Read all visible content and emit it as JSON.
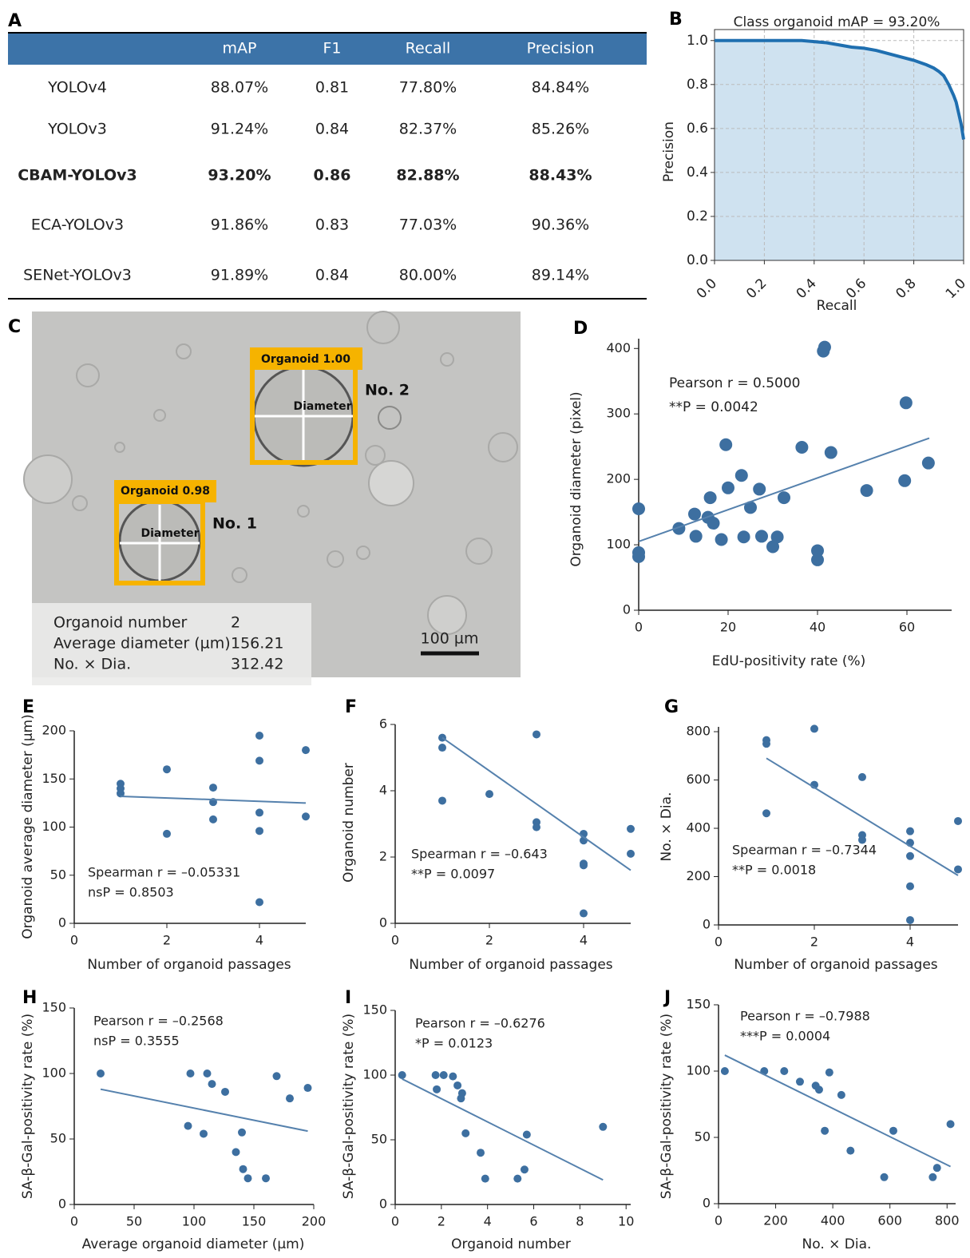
{
  "table": {
    "label": "A",
    "columns": [
      "mAP",
      "F1",
      "Recall",
      "Precision"
    ],
    "rows": [
      {
        "name": "YOLOv4",
        "cells": [
          "88.07%",
          "0.81",
          "77.80%",
          "84.84%"
        ]
      },
      {
        "name": "YOLOv3",
        "cells": [
          "91.24%",
          "0.84",
          "82.37%",
          "85.26%"
        ]
      },
      {
        "name": "CBAM-YOLOv3",
        "cells": [
          "93.20%",
          "0.86",
          "82.88%",
          "88.43%"
        ]
      },
      {
        "name": "ECA-YOLOv3",
        "cells": [
          "91.86%",
          "0.83",
          "77.03%",
          "90.36%"
        ]
      },
      {
        "name": "SENet-YOLOv3",
        "cells": [
          "91.89%",
          "0.84",
          "80.00%",
          "89.14%"
        ]
      }
    ]
  },
  "image_panel": {
    "label": "C",
    "detections": [
      {
        "tag": "Organoid 1.00",
        "measure": "Diameter",
        "name": "No. 2"
      },
      {
        "tag": "Organoid 0.98",
        "measure": "Diameter",
        "name": "No. 1"
      }
    ],
    "summary": [
      {
        "label": "Organoid number",
        "value": 2
      },
      {
        "label": "Average diameter (µm)",
        "value": 156.21
      },
      {
        "label": "No. × Dia.",
        "value": 312.42
      }
    ],
    "scale_bar": "100 µm"
  },
  "chart_data": [
    {
      "label": "B",
      "type": "area",
      "title": "Class organoid mAP = 93.20%",
      "x_label": "Recall",
      "y_label": "Precision",
      "color": "#1f6fb0",
      "fill": "#cfe2f0",
      "grid": true,
      "x": [
        0,
        0.1,
        0.2,
        0.3,
        0.35,
        0.4,
        0.45,
        0.5,
        0.55,
        0.6,
        0.65,
        0.7,
        0.75,
        0.8,
        0.85,
        0.88,
        0.9,
        0.92,
        0.94,
        0.96,
        0.97,
        0.98,
        0.99,
        1.0
      ],
      "values": [
        1.0,
        1.0,
        1.0,
        1.0,
        1.0,
        0.995,
        0.99,
        0.98,
        0.97,
        0.965,
        0.955,
        0.94,
        0.925,
        0.91,
        0.89,
        0.875,
        0.86,
        0.84,
        0.8,
        0.75,
        0.72,
        0.67,
        0.62,
        0.55
      ],
      "xlim": [
        0,
        1
      ],
      "ylim": [
        0,
        1.05
      ],
      "xticks": [
        {
          "value": 0,
          "label": "0.0"
        },
        {
          "value": 0.2,
          "label": "0.2"
        },
        {
          "value": 0.4,
          "label": "0.4"
        },
        {
          "value": 0.6,
          "label": "0.6"
        },
        {
          "value": 0.8,
          "label": "0.8"
        },
        {
          "value": 1,
          "label": "1.0"
        }
      ],
      "yticks": [
        {
          "value": 0,
          "label": "0.0"
        },
        {
          "value": 0.2,
          "label": "0.2"
        },
        {
          "value": 0.4,
          "label": "0.4"
        },
        {
          "value": 0.6,
          "label": "0.6"
        },
        {
          "value": 0.8,
          "label": "0.8"
        },
        {
          "value": 1,
          "label": "1.0"
        }
      ]
    },
    {
      "label": "D",
      "type": "scatter",
      "x_label": "EdU-positivity rate (%)",
      "y_label": "Organoid diameter (pixel)",
      "annotations": [
        "Pearson r = 0.5000",
        "**P = 0.0042"
      ],
      "color": "#3d6fa0",
      "x": [
        0,
        0,
        0,
        9,
        12.5,
        12.8,
        15.5,
        16,
        16.7,
        18.5,
        19.5,
        20,
        23,
        23.5,
        25,
        27,
        27.5,
        30,
        31,
        32.5,
        36.5,
        40,
        40,
        41.3,
        41.6,
        43,
        51,
        59.5,
        59.8,
        64.8
      ],
      "values": [
        155,
        88,
        82,
        125,
        147,
        113,
        142,
        172,
        133,
        108,
        253,
        187,
        206,
        112,
        157,
        185,
        113,
        97,
        112,
        172,
        249,
        91,
        77,
        396,
        402,
        241,
        183,
        198,
        317,
        225
      ],
      "fit": {
        "x": [
          0,
          65
        ],
        "values": [
          105,
          263
        ],
        "color": "#5581ad"
      },
      "xlim": [
        0,
        70
      ],
      "ylim": [
        0,
        415
      ],
      "xticks": [
        0,
        20,
        40,
        60
      ],
      "yticks": [
        0,
        100,
        200,
        300,
        400
      ]
    },
    {
      "label": "E",
      "type": "scatter",
      "x_label": "Number of organoid passages",
      "y_label": "Organoid average diameter (µm)",
      "annotations": [
        "Spearman r = –0.05331",
        "nsP = 0.8503"
      ],
      "color": "#3d6fa0",
      "x": [
        1,
        1,
        1,
        2,
        2,
        3,
        3,
        3,
        4,
        4,
        4,
        4,
        4,
        5,
        5
      ],
      "values": [
        145,
        140,
        135,
        160,
        93,
        141,
        126,
        108,
        195,
        169,
        115,
        96,
        22,
        180,
        111
      ],
      "fit": {
        "x": [
          1,
          5
        ],
        "values": [
          132,
          125
        ],
        "color": "#5581ad"
      },
      "xlim": [
        0,
        5
      ],
      "ylim": [
        0,
        200
      ],
      "xticks": [
        0,
        2,
        4
      ],
      "yticks": [
        0,
        50,
        100,
        150,
        200
      ]
    },
    {
      "label": "F",
      "type": "scatter",
      "x_label": "Number of organoid passages",
      "y_label": "Organoid number",
      "annotations": [
        "Spearman r = –0.643",
        "**P = 0.0097"
      ],
      "color": "#3d6fa0",
      "x": [
        1,
        1,
        1,
        2,
        3,
        3,
        3,
        4,
        4,
        4,
        4,
        4,
        5,
        5
      ],
      "values": [
        5.6,
        5.3,
        3.7,
        3.9,
        5.7,
        3.05,
        2.9,
        2.7,
        2.5,
        1.8,
        1.75,
        0.3,
        2.85,
        2.1
      ],
      "fit": {
        "x": [
          1,
          5
        ],
        "values": [
          5.6,
          1.6
        ],
        "color": "#5581ad"
      },
      "xlim": [
        0,
        5
      ],
      "ylim": [
        0,
        6
      ],
      "xticks": [
        0,
        2,
        4
      ],
      "yticks": [
        0,
        2,
        4,
        6
      ]
    },
    {
      "label": "G",
      "type": "scatter",
      "x_label": "Number of organoid passages",
      "y_label": "No. × Dia.",
      "annotations": [
        "Spearman r = –0.7344",
        "**P = 0.0018"
      ],
      "color": "#3d6fa0",
      "x": [
        1,
        1,
        1,
        2,
        2,
        3,
        3,
        3,
        4,
        4,
        4,
        4,
        4,
        5,
        5
      ],
      "values": [
        765,
        750,
        462,
        812,
        580,
        612,
        372,
        352,
        388,
        340,
        285,
        160,
        20,
        430,
        230
      ],
      "fit": {
        "x": [
          1,
          5
        ],
        "values": [
          690,
          205
        ],
        "color": "#5581ad"
      },
      "xlim": [
        0,
        5
      ],
      "ylim": [
        0,
        820
      ],
      "xticks": [
        0,
        2,
        4
      ],
      "yticks": [
        0,
        200,
        400,
        600,
        800
      ]
    },
    {
      "label": "H",
      "type": "scatter",
      "x_label": "Average organoid diameter (µm)",
      "y_label": "SA-β-Gal-positivity rate (%)",
      "annotations": [
        "Pearson r = –0.2568",
        "nsP = 0.3555"
      ],
      "color": "#3d6fa0",
      "x": [
        22,
        95,
        97,
        108,
        111,
        115,
        126,
        135,
        140,
        141,
        145,
        160,
        169,
        180,
        195
      ],
      "values": [
        100,
        60,
        100,
        54,
        100,
        92,
        86,
        40,
        55,
        27,
        20,
        20,
        98,
        81,
        89
      ],
      "fit": {
        "x": [
          22,
          195
        ],
        "values": [
          88,
          56
        ],
        "color": "#5581ad"
      },
      "xlim": [
        0,
        200
      ],
      "ylim": [
        0,
        150
      ],
      "xticks": [
        0,
        50,
        100,
        150,
        200
      ],
      "yticks": [
        0,
        50,
        100,
        150
      ]
    },
    {
      "label": "I",
      "type": "scatter",
      "x_label": "Organoid number",
      "y_label": "SA-β-Gal-positivity rate (%)",
      "annotations": [
        "Pearson r = –0.6276",
        "*P = 0.0123"
      ],
      "color": "#3d6fa0",
      "x": [
        0.3,
        1.75,
        1.8,
        2.1,
        2.5,
        2.7,
        2.85,
        2.9,
        3.05,
        3.7,
        3.9,
        5.3,
        5.6,
        5.7,
        9
      ],
      "values": [
        100,
        100,
        89,
        100,
        99,
        92,
        82,
        86,
        55,
        40,
        20,
        20,
        27,
        54,
        60
      ],
      "fit": {
        "x": [
          0.3,
          9
        ],
        "values": [
          97,
          19
        ],
        "color": "#5581ad"
      },
      "xlim": [
        0,
        10.2
      ],
      "ylim": [
        0,
        150
      ],
      "xticks": [
        0,
        2,
        4,
        6,
        8,
        10
      ],
      "yticks": [
        0,
        50,
        100,
        150
      ]
    },
    {
      "label": "J",
      "type": "scatter",
      "x_label": "No. × Dia.",
      "y_label": "SA-β-Gal-positivity rate (%)",
      "annotations": [
        "Pearson r = –0.7988",
        "***P = 0.0004"
      ],
      "color": "#3d6fa0",
      "x": [
        22,
        160,
        230,
        285,
        340,
        352,
        372,
        388,
        430,
        462,
        580,
        612,
        750,
        765,
        812
      ],
      "values": [
        100,
        100,
        100,
        92,
        89,
        86,
        55,
        99,
        82,
        40,
        20,
        55,
        20,
        27,
        60
      ],
      "fit": {
        "x": [
          22,
          812
        ],
        "values": [
          112,
          28
        ],
        "color": "#5581ad"
      },
      "xlim": [
        0,
        830
      ],
      "ylim": [
        0,
        150
      ],
      "xticks": [
        0,
        200,
        400,
        600,
        800
      ],
      "yticks": [
        0,
        50,
        100,
        150
      ]
    }
  ]
}
